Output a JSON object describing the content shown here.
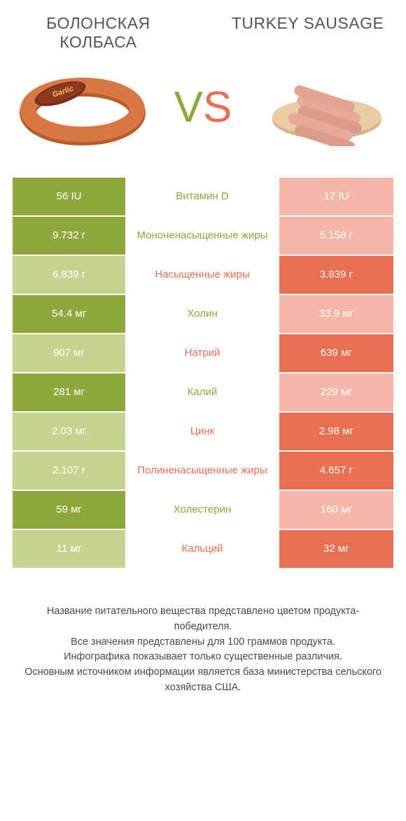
{
  "titles": {
    "left": "БОЛОНСКАЯ КОЛБАСА",
    "right": "TURKEY SAUSAGE"
  },
  "vs": {
    "v": "V",
    "s": "S"
  },
  "colors": {
    "green": "#8fa83e",
    "green_light": "#c5d48f",
    "orange": "#e96f51",
    "orange_light": "#f4b7a8",
    "text_gray": "#555555",
    "footer_gray": "#4a4a4a"
  },
  "rows": [
    {
      "left": "56 IU",
      "label": "Витамин D",
      "right": "17 IU",
      "winner": "left"
    },
    {
      "left": "9.732 г",
      "label": "Мононенасыщенные жиры",
      "right": "5.158 г",
      "winner": "left"
    },
    {
      "left": "6.839 г",
      "label": "Насыщенные жиры",
      "right": "3.839 г",
      "winner": "right"
    },
    {
      "left": "54.4 мг",
      "label": "Холин",
      "right": "33.9 мг",
      "winner": "left"
    },
    {
      "left": "907 мг",
      "label": "Натрий",
      "right": "639 мг",
      "winner": "right"
    },
    {
      "left": "281 мг",
      "label": "Калий",
      "right": "229 мг",
      "winner": "left"
    },
    {
      "left": "2.03 мг",
      "label": "Цинк",
      "right": "2.98 мг",
      "winner": "right"
    },
    {
      "left": "2.107 г",
      "label": "Полиненасыщенные жиры",
      "right": "4.657 г",
      "winner": "right"
    },
    {
      "left": "59 мг",
      "label": "Холестерин",
      "right": "160 мг",
      "winner": "left"
    },
    {
      "left": "11 мг",
      "label": "Кальций",
      "right": "32 мг",
      "winner": "right"
    }
  ],
  "footer": [
    "Название питательного вещества представлено цветом продукта-победителя.",
    "Все значения представлены для 100 граммов продукта.",
    "Инфографика показывает только существенные различия.",
    "Основным источником информации является база министерства сельского хозяйства США."
  ],
  "images": {
    "left_alt": "bologna-sausage",
    "right_alt": "turkey-sausage"
  }
}
